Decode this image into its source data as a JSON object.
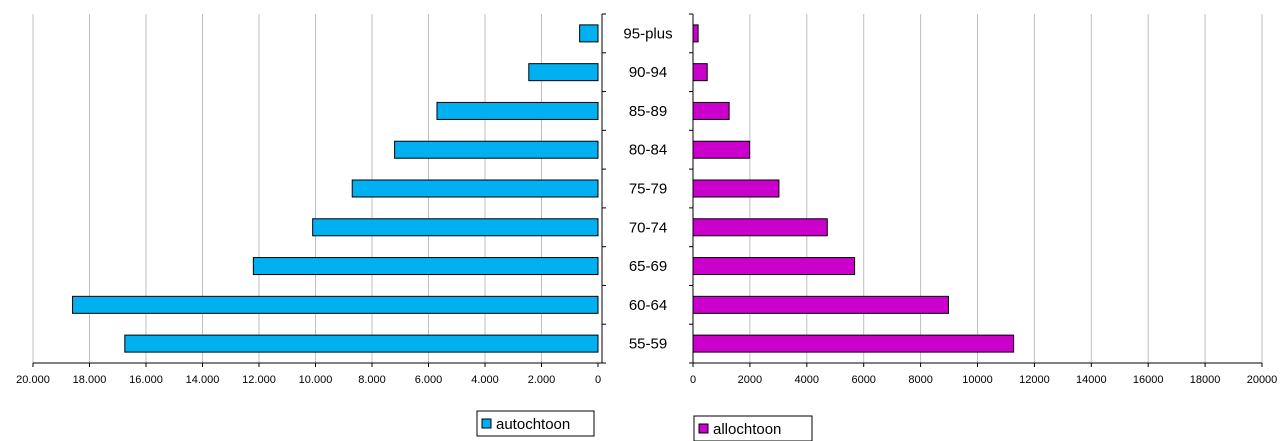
{
  "chart_data": [
    {
      "type": "bar",
      "orientation": "horizontal",
      "direction": "leftward",
      "categories": [
        "95-plus",
        "90-94",
        "85-89",
        "80-84",
        "75-79",
        "70-74",
        "65-69",
        "60-64",
        "55-59"
      ],
      "series": [
        {
          "name": "autochtoon",
          "values": [
            650,
            2450,
            5700,
            7200,
            8700,
            10100,
            12200,
            18600,
            16750
          ],
          "color": "#00B0F0"
        }
      ],
      "xlim": [
        0,
        20000
      ],
      "xticks": [
        "0",
        "2.000",
        "4.000",
        "6.000",
        "8.000",
        "10.000",
        "12.000",
        "14.000",
        "16.000",
        "18.000",
        "20.000"
      ],
      "grid": true,
      "legend": "bottom-right"
    },
    {
      "type": "bar",
      "orientation": "horizontal",
      "direction": "rightward",
      "categories": [
        "95-plus",
        "90-94",
        "85-89",
        "80-84",
        "75-79",
        "70-74",
        "65-69",
        "60-64",
        "55-59"
      ],
      "series": [
        {
          "name": "allochtoon",
          "values": [
            180,
            500,
            1270,
            1990,
            3020,
            4720,
            5680,
            8980,
            11270
          ],
          "color": "#CC00CC"
        }
      ],
      "xlim": [
        0,
        20000
      ],
      "xticks": [
        "0",
        "2000",
        "4000",
        "6000",
        "8000",
        "10000",
        "12000",
        "14000",
        "16000",
        "18000",
        "20000"
      ],
      "grid": true,
      "legend": "bottom-left"
    }
  ]
}
